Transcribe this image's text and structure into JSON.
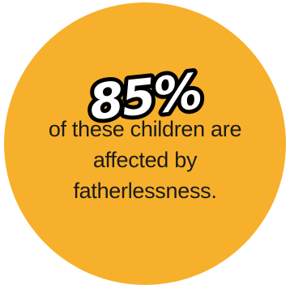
{
  "stat": {
    "value": "85%"
  },
  "caption": {
    "line1": "of these children are",
    "line2": "affected by",
    "line3": "fatherlessness."
  },
  "colors": {
    "circle": "#f7b02b",
    "stat_fill": "#ffffff",
    "stat_outline": "#000000",
    "caption_text": "#1a1a1a"
  }
}
